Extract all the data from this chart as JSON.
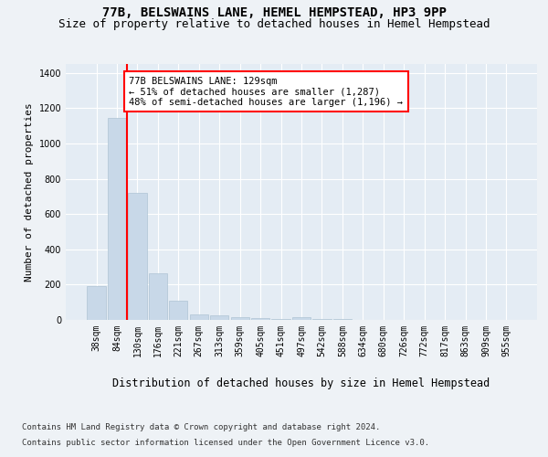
{
  "title1": "77B, BELSWAINS LANE, HEMEL HEMPSTEAD, HP3 9PP",
  "title2": "Size of property relative to detached houses in Hemel Hempstead",
  "xlabel": "Distribution of detached houses by size in Hemel Hempstead",
  "ylabel": "Number of detached properties",
  "categories": [
    "38sqm",
    "84sqm",
    "130sqm",
    "176sqm",
    "221sqm",
    "267sqm",
    "313sqm",
    "359sqm",
    "405sqm",
    "451sqm",
    "497sqm",
    "542sqm",
    "588sqm",
    "634sqm",
    "680sqm",
    "726sqm",
    "772sqm",
    "817sqm",
    "863sqm",
    "909sqm",
    "955sqm"
  ],
  "values": [
    192,
    1143,
    718,
    265,
    108,
    30,
    25,
    14,
    10,
    5,
    13,
    5,
    3,
    2,
    1,
    1,
    0,
    0,
    0,
    0,
    0
  ],
  "bar_color": "#c8d8e8",
  "bar_edge_color": "#afc4d4",
  "vline_color": "red",
  "annotation_text": "77B BELSWAINS LANE: 129sqm\n← 51% of detached houses are smaller (1,287)\n48% of semi-detached houses are larger (1,196) →",
  "annotation_box_color": "white",
  "annotation_box_edge": "red",
  "ylim": [
    0,
    1450
  ],
  "yticks": [
    0,
    200,
    400,
    600,
    800,
    1000,
    1200,
    1400
  ],
  "footer1": "Contains HM Land Registry data © Crown copyright and database right 2024.",
  "footer2": "Contains public sector information licensed under the Open Government Licence v3.0.",
  "bg_color": "#eef2f6",
  "plot_bg_color": "#e4ecf4",
  "grid_color": "white",
  "title1_fontsize": 10,
  "title2_fontsize": 9,
  "xlabel_fontsize": 8.5,
  "ylabel_fontsize": 8,
  "tick_fontsize": 7,
  "footer_fontsize": 6.5,
  "annot_fontsize": 7.5
}
